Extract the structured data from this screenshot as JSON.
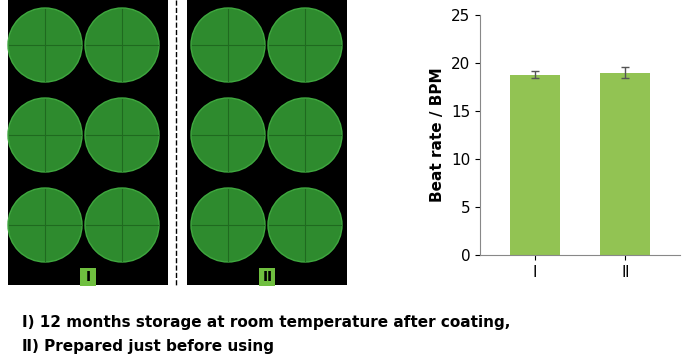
{
  "chart_data": {
    "type": "bar",
    "categories": [
      "Ⅰ",
      "Ⅱ"
    ],
    "values": [
      18.8,
      19.0
    ],
    "errors": [
      0.4,
      0.6
    ],
    "color": "#92c353",
    "y_label": "Beat rate / BPM",
    "ylim": [
      0,
      25
    ],
    "yticks": [
      0,
      5,
      10,
      15,
      20,
      25
    ],
    "grid": false
  },
  "image_labels": [
    "Ⅰ",
    "Ⅱ"
  ],
  "captions": [
    "Ⅰ) 12 months storage at room temperature after coating,",
    "Ⅱ) Prepared just before using"
  ]
}
